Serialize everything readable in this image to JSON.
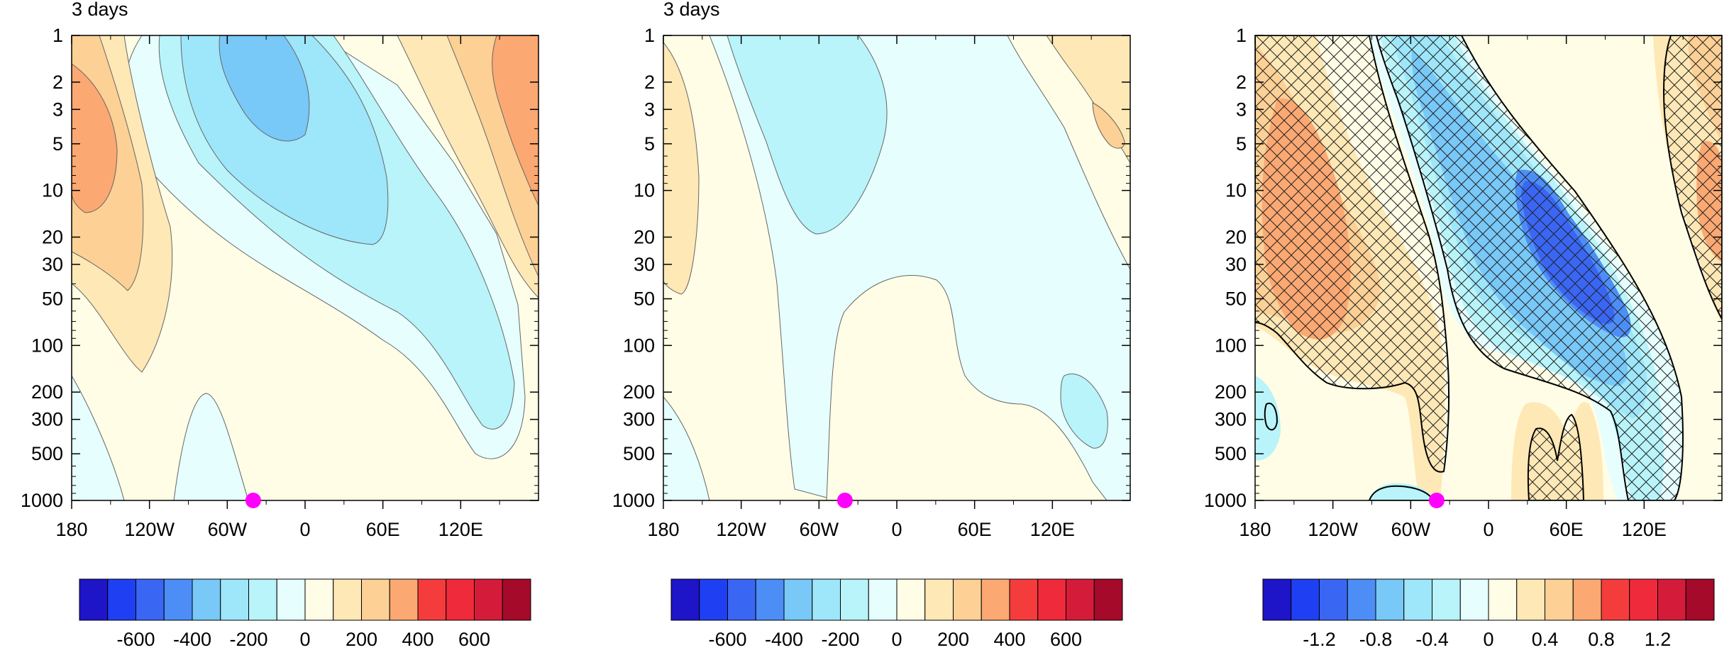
{
  "palette": [
    "#1e14c8",
    "#1f3ff2",
    "#3a66f4",
    "#4d8ef6",
    "#78c8f8",
    "#9ee6fa",
    "#b8f4fa",
    "#e6fefe",
    "#fffde6",
    "#fee8b6",
    "#fdd095",
    "#fca872",
    "#f53c3c",
    "#ef2a3a",
    "#d41c3a",
    "#a50a2a"
  ],
  "chart_data": [
    {
      "type": "contour",
      "title": "3 days",
      "x_ticks": [
        "180",
        "120W",
        "60W",
        "0",
        "60E",
        "120E"
      ],
      "y_ticks": [
        "1",
        "2",
        "3",
        "5",
        "10",
        "20",
        "30",
        "50",
        "100",
        "200",
        "300",
        "500",
        "1000"
      ],
      "y_scale": "log",
      "ylim": [
        1000,
        1
      ],
      "marker": {
        "lon": -40,
        "pressure": 1000,
        "color": "#ff00ff"
      },
      "colorbar_labels": [
        "-600",
        "-400",
        "-200",
        "0",
        "200",
        "400",
        "600"
      ],
      "colorbar_levels": [
        -700,
        -600,
        -500,
        -400,
        -300,
        -200,
        -100,
        0,
        100,
        200,
        300,
        400,
        500,
        600,
        700
      ]
    },
    {
      "type": "contour",
      "title": "3 days",
      "x_ticks": [
        "180",
        "120W",
        "60W",
        "0",
        "60E",
        "120E"
      ],
      "y_ticks": [
        "1",
        "2",
        "3",
        "5",
        "10",
        "20",
        "30",
        "50",
        "100",
        "200",
        "300",
        "500",
        "1000"
      ],
      "y_scale": "log",
      "ylim": [
        1000,
        1
      ],
      "marker": {
        "lon": -40,
        "pressure": 1000,
        "color": "#ff00ff"
      },
      "colorbar_labels": [
        "-600",
        "-400",
        "-200",
        "0",
        "200",
        "400",
        "600"
      ],
      "colorbar_levels": [
        -700,
        -600,
        -500,
        -400,
        -300,
        -200,
        -100,
        0,
        100,
        200,
        300,
        400,
        500,
        600,
        700
      ]
    },
    {
      "type": "contour",
      "title": "",
      "hatched": true,
      "x_ticks": [
        "180",
        "120W",
        "60W",
        "0",
        "60E",
        "120E"
      ],
      "y_ticks": [
        "1",
        "2",
        "3",
        "5",
        "10",
        "20",
        "30",
        "50",
        "100",
        "200",
        "300",
        "500",
        "1000"
      ],
      "y_scale": "log",
      "ylim": [
        1000,
        1
      ],
      "marker": {
        "lon": -40,
        "pressure": 1000,
        "color": "#ff00ff"
      },
      "colorbar_labels": [
        "-1.2",
        "-0.8",
        "-0.4",
        "0",
        "0.4",
        "0.8",
        "1.2"
      ],
      "colorbar_levels": [
        -1.4,
        -1.2,
        -1.0,
        -0.8,
        -0.6,
        -0.4,
        -0.2,
        0,
        0.2,
        0.4,
        0.6,
        0.8,
        1.0,
        1.2,
        1.4
      ]
    }
  ]
}
